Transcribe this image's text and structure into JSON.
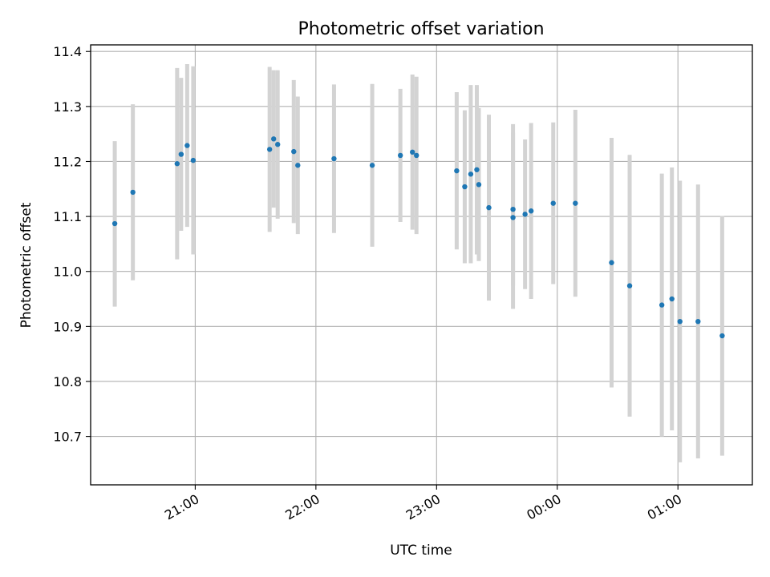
{
  "chart_data": {
    "type": "scatter",
    "title": "Photometric offset variation",
    "xlabel": "UTC time",
    "ylabel": "Photometric offset",
    "x_axis": {
      "type": "time",
      "range": [
        "20:08",
        "01:37"
      ],
      "ticks": [
        "21:00",
        "22:00",
        "23:00",
        "00:00",
        "01:00"
      ]
    },
    "y_axis": {
      "range": [
        10.612,
        11.412
      ],
      "ticks": [
        "10.7",
        "10.8",
        "10.9",
        "11.0",
        "11.1",
        "11.2",
        "11.3",
        "11.4"
      ]
    },
    "grid": true,
    "colors": {
      "point": "#1f77b4",
      "errorbar": "#d3d3d3",
      "grid": "#b0b0b0"
    },
    "series": [
      {
        "points": [
          {
            "t": "20:20",
            "y": 11.087,
            "lo": 10.936,
            "hi": 11.237
          },
          {
            "t": "20:29",
            "y": 11.144,
            "lo": 10.984,
            "hi": 11.304
          },
          {
            "t": "20:51",
            "y": 11.196,
            "lo": 11.022,
            "hi": 11.37
          },
          {
            "t": "20:53",
            "y": 11.213,
            "lo": 11.074,
            "hi": 11.352
          },
          {
            "t": "20:56",
            "y": 11.229,
            "lo": 11.081,
            "hi": 11.377
          },
          {
            "t": "20:59",
            "y": 11.202,
            "lo": 11.031,
            "hi": 11.373
          },
          {
            "t": "21:37",
            "y": 11.222,
            "lo": 11.072,
            "hi": 11.372
          },
          {
            "t": "21:39",
            "y": 11.241,
            "lo": 11.116,
            "hi": 11.366
          },
          {
            "t": "21:41",
            "y": 11.231,
            "lo": 11.096,
            "hi": 11.366
          },
          {
            "t": "21:49",
            "y": 11.218,
            "lo": 11.088,
            "hi": 11.348
          },
          {
            "t": "21:51",
            "y": 11.193,
            "lo": 11.068,
            "hi": 11.318
          },
          {
            "t": "22:09",
            "y": 11.205,
            "lo": 11.07,
            "hi": 11.34
          },
          {
            "t": "22:28",
            "y": 11.193,
            "lo": 11.045,
            "hi": 11.341
          },
          {
            "t": "22:42",
            "y": 11.211,
            "lo": 11.09,
            "hi": 11.332
          },
          {
            "t": "22:48",
            "y": 11.217,
            "lo": 11.076,
            "hi": 11.358
          },
          {
            "t": "22:50",
            "y": 11.211,
            "lo": 11.068,
            "hi": 11.354
          },
          {
            "t": "23:10",
            "y": 11.183,
            "lo": 11.04,
            "hi": 11.326
          },
          {
            "t": "23:14",
            "y": 11.154,
            "lo": 11.015,
            "hi": 11.293
          },
          {
            "t": "23:17",
            "y": 11.177,
            "lo": 11.015,
            "hi": 11.339
          },
          {
            "t": "23:20",
            "y": 11.185,
            "lo": 11.031,
            "hi": 11.339
          },
          {
            "t": "23:21",
            "y": 11.158,
            "lo": 11.019,
            "hi": 11.297
          },
          {
            "t": "23:26",
            "y": 11.116,
            "lo": 10.947,
            "hi": 11.285
          },
          {
            "t": "23:38",
            "y": 11.113,
            "lo": 10.974,
            "hi": 11.252
          },
          {
            "t": "23:38",
            "y": 11.098,
            "lo": 10.932,
            "hi": 11.268
          },
          {
            "t": "23:44",
            "y": 11.104,
            "lo": 10.968,
            "hi": 11.24
          },
          {
            "t": "23:47",
            "y": 11.11,
            "lo": 10.95,
            "hi": 11.27
          },
          {
            "t": "23:58",
            "y": 11.124,
            "lo": 10.977,
            "hi": 11.271
          },
          {
            "t": "00:09",
            "y": 11.124,
            "lo": 10.954,
            "hi": 11.294
          },
          {
            "t": "00:27",
            "y": 11.016,
            "lo": 10.789,
            "hi": 11.243
          },
          {
            "t": "00:36",
            "y": 10.974,
            "lo": 10.736,
            "hi": 11.212
          },
          {
            "t": "00:52",
            "y": 10.939,
            "lo": 10.7,
            "hi": 11.178
          },
          {
            "t": "00:57",
            "y": 10.95,
            "lo": 10.711,
            "hi": 11.189
          },
          {
            "t": "01:01",
            "y": 10.909,
            "lo": 10.653,
            "hi": 11.165
          },
          {
            "t": "01:10",
            "y": 10.909,
            "lo": 10.66,
            "hi": 11.158
          },
          {
            "t": "01:22",
            "y": 10.883,
            "lo": 10.665,
            "hi": 11.101
          }
        ]
      }
    ]
  }
}
